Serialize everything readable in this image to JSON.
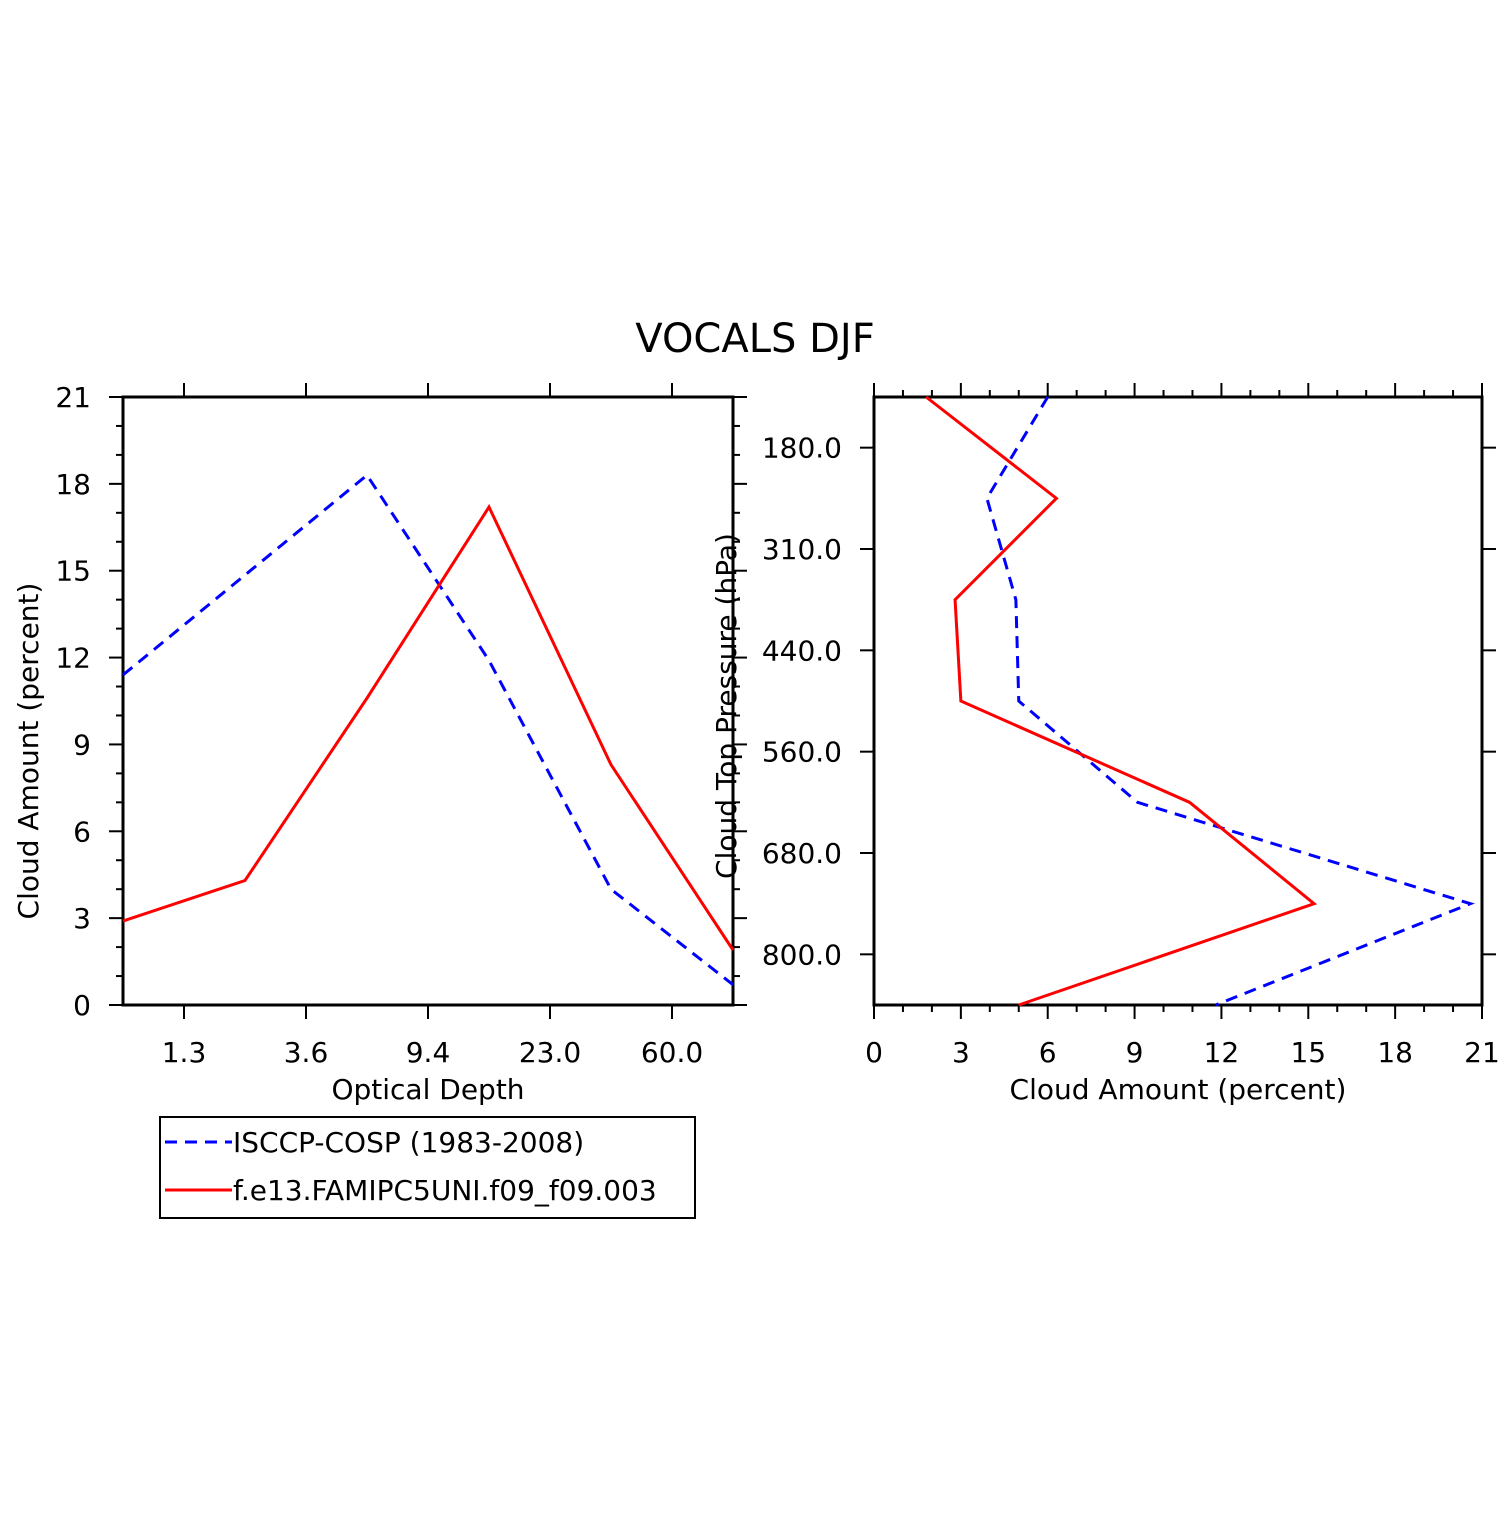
{
  "title": "VOCALS DJF",
  "legend": {
    "entries": [
      {
        "label": "ISCCP-COSP (1983-2008)",
        "color": "#0000ff",
        "style": "dashed"
      },
      {
        "label": "f.e13.FAMIPC5UNI.f09_f09.003",
        "color": "#ff0000",
        "style": "solid"
      }
    ]
  },
  "chart_data": [
    {
      "type": "line",
      "xlabel": "Optical Depth",
      "ylabel": "Cloud Amount (percent)",
      "x_tick_labels": [
        "1.3",
        "3.6",
        "9.4",
        "23.0",
        "60.0"
      ],
      "y_tick_labels": [
        "0",
        "3",
        "6",
        "9",
        "12",
        "15",
        "18",
        "21"
      ],
      "ylim": [
        0,
        21
      ],
      "x_index_range": [
        0,
        5
      ],
      "series": [
        {
          "name": "ISCCP-COSP (1983-2008)",
          "color": "#0000ff",
          "dashed": true,
          "x": [
            0,
            2,
            3,
            4,
            5
          ],
          "y": [
            11.4,
            18.3,
            11.9,
            4.0,
            0.7
          ]
        },
        {
          "name": "f.e13.FAMIPC5UNI.f09_f09.003",
          "color": "#ff0000",
          "dashed": false,
          "x": [
            0,
            1,
            2,
            3,
            4,
            5
          ],
          "y": [
            2.9,
            4.3,
            10.6,
            17.2,
            8.3,
            1.9
          ]
        }
      ]
    },
    {
      "type": "line",
      "xlabel": "Cloud Amount (percent)",
      "ylabel": "Cloud Top Pressure (hPa)",
      "x_tick_labels": [
        "0",
        "3",
        "6",
        "9",
        "12",
        "15",
        "18",
        "21"
      ],
      "xlim": [
        0,
        21
      ],
      "y_tick_labels": [
        "180.0",
        "310.0",
        "440.0",
        "560.0",
        "680.0",
        "800.0"
      ],
      "y_index_range": [
        0,
        6
      ],
      "series": [
        {
          "name": "ISCCP-COSP (1983-2008)",
          "color": "#0000ff",
          "dashed": true,
          "x": [
            6.0,
            3.9,
            4.9,
            5.0,
            9.1,
            20.6,
            11.8
          ],
          "y": [
            0,
            1,
            2,
            3,
            4,
            5,
            6
          ]
        },
        {
          "name": "f.e13.FAMIPC5UNI.f09_f09.003",
          "color": "#ff0000",
          "dashed": false,
          "x": [
            1.8,
            6.3,
            2.8,
            3.0,
            10.9,
            15.2,
            5.0
          ],
          "y": [
            0,
            1,
            2,
            3,
            4,
            5,
            6
          ]
        }
      ]
    }
  ]
}
